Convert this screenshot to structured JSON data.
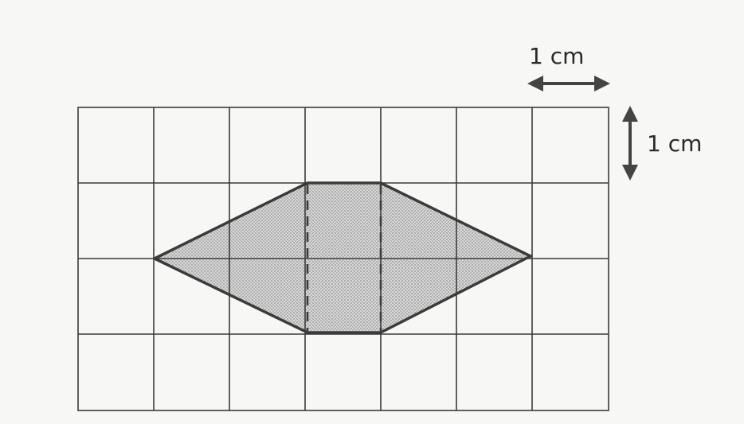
{
  "diagram": {
    "type": "grid-figure",
    "grid": {
      "columns": 7,
      "rows": 4,
      "cell_size": "1 cm"
    },
    "scale": {
      "horizontal_label": "1 cm",
      "vertical_label": "1 cm"
    },
    "shape": {
      "description_vertices_in_grid_units": [
        [
          1,
          2
        ],
        [
          3,
          1
        ],
        [
          4,
          1
        ],
        [
          6,
          2
        ],
        [
          4,
          3
        ],
        [
          3,
          3
        ]
      ],
      "fill": "dotted-gray",
      "dashed_dividers_at_x": [
        3,
        4
      ]
    },
    "colors": {
      "grid_line": "#3a3a3a",
      "shape_outline": "#3b3b3b",
      "shape_fill": "#cfcfcf",
      "arrow": "#444444",
      "background": "#f7f7f5"
    }
  }
}
